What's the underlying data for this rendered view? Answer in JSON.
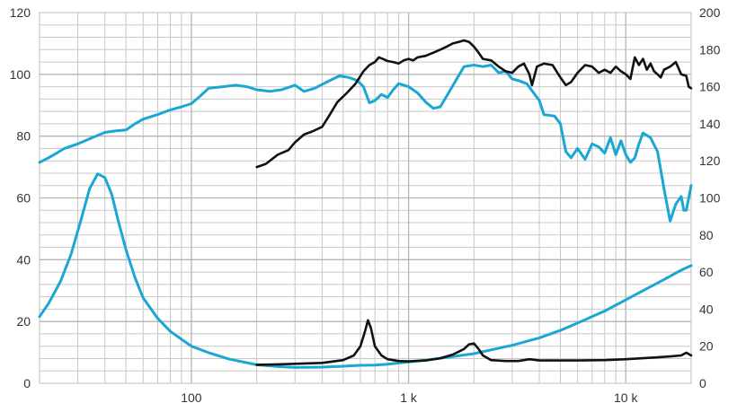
{
  "chart_data": {
    "type": "line",
    "title": "",
    "xlabel": "",
    "ylabel": "",
    "x_scale": "log",
    "xlim": [
      20,
      20000
    ],
    "ylim_left": [
      0,
      120
    ],
    "ylim_right": [
      0,
      200
    ],
    "grid": true,
    "x_tick_values": [
      100,
      1000,
      10000
    ],
    "x_tick_labels": [
      "100",
      "1 k",
      "10 k"
    ],
    "y_left_ticks": [
      "0",
      "20",
      "40",
      "60",
      "80",
      "100",
      "120"
    ],
    "y_right_ticks": [
      "0",
      "20",
      "40",
      "60",
      "80",
      "100",
      "120",
      "140",
      "160",
      "180",
      "200"
    ],
    "colors": {
      "blue": "#1aa7d3",
      "black": "#111111",
      "grid": "#c8c8c8"
    },
    "series": [
      {
        "color": "blue",
        "axis": "left",
        "points": [
          [
            20,
            71.5
          ],
          [
            22,
            73
          ],
          [
            24,
            74.5
          ],
          [
            26,
            76
          ],
          [
            30,
            77.5
          ],
          [
            35,
            79.5
          ],
          [
            40,
            81.2
          ],
          [
            45,
            81.7
          ],
          [
            50,
            82
          ],
          [
            55,
            84
          ],
          [
            60,
            85.5
          ],
          [
            70,
            87
          ],
          [
            80,
            88.5
          ],
          [
            90,
            89.5
          ],
          [
            100,
            90.5
          ],
          [
            110,
            93
          ],
          [
            120,
            95.5
          ],
          [
            140,
            96
          ],
          [
            160,
            96.5
          ],
          [
            180,
            96
          ],
          [
            200,
            95
          ],
          [
            230,
            94.5
          ],
          [
            260,
            95
          ],
          [
            300,
            96.5
          ],
          [
            330,
            94.5
          ],
          [
            370,
            95.5
          ],
          [
            420,
            97.5
          ],
          [
            480,
            99.5
          ],
          [
            530,
            99
          ],
          [
            580,
            98
          ],
          [
            620,
            96
          ],
          [
            660,
            90.8
          ],
          [
            700,
            91.5
          ],
          [
            750,
            93.5
          ],
          [
            800,
            92.5
          ],
          [
            850,
            95
          ],
          [
            900,
            97
          ],
          [
            950,
            96.5
          ],
          [
            1000,
            96
          ],
          [
            1100,
            94
          ],
          [
            1200,
            91
          ],
          [
            1300,
            89
          ],
          [
            1400,
            89.5
          ],
          [
            1500,
            93
          ],
          [
            1650,
            98
          ],
          [
            1800,
            102.5
          ],
          [
            2000,
            103
          ],
          [
            2200,
            102.5
          ],
          [
            2400,
            103
          ],
          [
            2600,
            100.5
          ],
          [
            2800,
            101
          ],
          [
            3000,
            98.5
          ],
          [
            3200,
            98
          ],
          [
            3500,
            97
          ],
          [
            4000,
            91.5
          ],
          [
            4200,
            87
          ],
          [
            4700,
            86.5
          ],
          [
            5000,
            84
          ],
          [
            5300,
            75
          ],
          [
            5600,
            73
          ],
          [
            6000,
            76
          ],
          [
            6500,
            72.5
          ],
          [
            7000,
            77.5
          ],
          [
            7500,
            76.5
          ],
          [
            8000,
            74.5
          ],
          [
            8500,
            79.5
          ],
          [
            9000,
            74
          ],
          [
            9500,
            78.5
          ],
          [
            10000,
            74
          ],
          [
            10500,
            71.5
          ],
          [
            11000,
            73
          ],
          [
            11500,
            77.5
          ],
          [
            12000,
            81
          ],
          [
            13000,
            79.5
          ],
          [
            14000,
            75
          ],
          [
            15000,
            63
          ],
          [
            16000,
            52.5
          ],
          [
            17000,
            58
          ],
          [
            18000,
            60.5
          ],
          [
            18500,
            56
          ],
          [
            19000,
            56
          ],
          [
            20000,
            64
          ]
        ]
      },
      {
        "color": "black",
        "axis": "left",
        "points": [
          [
            200,
            70
          ],
          [
            220,
            71
          ],
          [
            250,
            74
          ],
          [
            280,
            75.5
          ],
          [
            300,
            78
          ],
          [
            330,
            80.5
          ],
          [
            360,
            81.5
          ],
          [
            400,
            83
          ],
          [
            430,
            86.5
          ],
          [
            470,
            91
          ],
          [
            520,
            94
          ],
          [
            570,
            97
          ],
          [
            620,
            101
          ],
          [
            660,
            103
          ],
          [
            700,
            104
          ],
          [
            730,
            105.5
          ],
          [
            760,
            105
          ],
          [
            800,
            104.3
          ],
          [
            850,
            104
          ],
          [
            900,
            103.5
          ],
          [
            950,
            104.5
          ],
          [
            1000,
            105
          ],
          [
            1050,
            104.5
          ],
          [
            1100,
            105.5
          ],
          [
            1200,
            106
          ],
          [
            1300,
            107
          ],
          [
            1400,
            108
          ],
          [
            1500,
            109
          ],
          [
            1600,
            110
          ],
          [
            1700,
            110.5
          ],
          [
            1800,
            111
          ],
          [
            1900,
            110.5
          ],
          [
            2000,
            109
          ],
          [
            2100,
            107
          ],
          [
            2200,
            105
          ],
          [
            2400,
            104.5
          ],
          [
            2600,
            102.5
          ],
          [
            2800,
            101
          ],
          [
            3000,
            100.5
          ],
          [
            3200,
            102.5
          ],
          [
            3400,
            103.5
          ],
          [
            3600,
            100
          ],
          [
            3700,
            96.5
          ],
          [
            3900,
            102.5
          ],
          [
            4200,
            103.5
          ],
          [
            4600,
            103
          ],
          [
            5000,
            99
          ],
          [
            5300,
            96.5
          ],
          [
            5600,
            97.5
          ],
          [
            6000,
            100.5
          ],
          [
            6500,
            103
          ],
          [
            7000,
            102.5
          ],
          [
            7500,
            100.5
          ],
          [
            8000,
            101.5
          ],
          [
            8500,
            100.5
          ],
          [
            9000,
            102.5
          ],
          [
            9500,
            101
          ],
          [
            10000,
            100
          ],
          [
            10500,
            98.5
          ],
          [
            11000,
            105.5
          ],
          [
            11500,
            103
          ],
          [
            12000,
            105
          ],
          [
            12500,
            101.5
          ],
          [
            13000,
            103.5
          ],
          [
            13500,
            101
          ],
          [
            14000,
            100
          ],
          [
            14500,
            99
          ],
          [
            15000,
            101.5
          ],
          [
            16000,
            102.5
          ],
          [
            17000,
            104
          ],
          [
            18000,
            100
          ],
          [
            19000,
            99.5
          ],
          [
            19500,
            96
          ],
          [
            20000,
            95.5
          ]
        ]
      },
      {
        "color": "blue",
        "axis": "right",
        "points": [
          [
            20,
            36
          ],
          [
            22,
            43
          ],
          [
            25,
            55
          ],
          [
            28,
            70
          ],
          [
            31,
            88
          ],
          [
            34,
            105
          ],
          [
            37,
            113
          ],
          [
            40,
            111
          ],
          [
            43,
            102
          ],
          [
            46,
            88
          ],
          [
            50,
            72
          ],
          [
            55,
            57
          ],
          [
            60,
            46
          ],
          [
            70,
            35
          ],
          [
            80,
            28
          ],
          [
            100,
            20
          ],
          [
            120,
            16.5
          ],
          [
            150,
            13
          ],
          [
            200,
            10
          ],
          [
            250,
            9
          ],
          [
            300,
            8.5
          ],
          [
            400,
            8.7
          ],
          [
            500,
            9.2
          ],
          [
            600,
            9.7
          ],
          [
            700,
            9.8
          ],
          [
            800,
            10.3
          ],
          [
            1000,
            11.5
          ],
          [
            1200,
            12.5
          ],
          [
            1500,
            14
          ],
          [
            2000,
            16
          ],
          [
            2500,
            18.5
          ],
          [
            3000,
            20.5
          ],
          [
            4000,
            24.5
          ],
          [
            5000,
            28.5
          ],
          [
            6000,
            32.5
          ],
          [
            8000,
            39
          ],
          [
            10000,
            45
          ],
          [
            12000,
            50
          ],
          [
            15000,
            56
          ],
          [
            18000,
            61
          ],
          [
            20000,
            63.5
          ]
        ]
      },
      {
        "color": "black",
        "axis": "right",
        "points": [
          [
            200,
            10
          ],
          [
            250,
            10.2
          ],
          [
            300,
            10.5
          ],
          [
            400,
            11
          ],
          [
            500,
            12.5
          ],
          [
            560,
            15
          ],
          [
            600,
            20
          ],
          [
            630,
            28
          ],
          [
            650,
            34
          ],
          [
            670,
            30
          ],
          [
            700,
            20
          ],
          [
            750,
            15
          ],
          [
            800,
            13
          ],
          [
            900,
            12
          ],
          [
            1000,
            11.8
          ],
          [
            1200,
            12.3
          ],
          [
            1400,
            13.5
          ],
          [
            1600,
            15.5
          ],
          [
            1800,
            18.5
          ],
          [
            1900,
            21
          ],
          [
            2000,
            21.5
          ],
          [
            2100,
            18.5
          ],
          [
            2200,
            15
          ],
          [
            2400,
            12.5
          ],
          [
            2800,
            12
          ],
          [
            3200,
            12
          ],
          [
            3600,
            13
          ],
          [
            4000,
            12.3
          ],
          [
            5000,
            12.3
          ],
          [
            6000,
            12.3
          ],
          [
            8000,
            12.5
          ],
          [
            10000,
            13
          ],
          [
            12000,
            13.5
          ],
          [
            14000,
            14
          ],
          [
            16000,
            14.5
          ],
          [
            18000,
            15
          ],
          [
            19000,
            16.5
          ],
          [
            20000,
            15
          ]
        ]
      }
    ]
  }
}
